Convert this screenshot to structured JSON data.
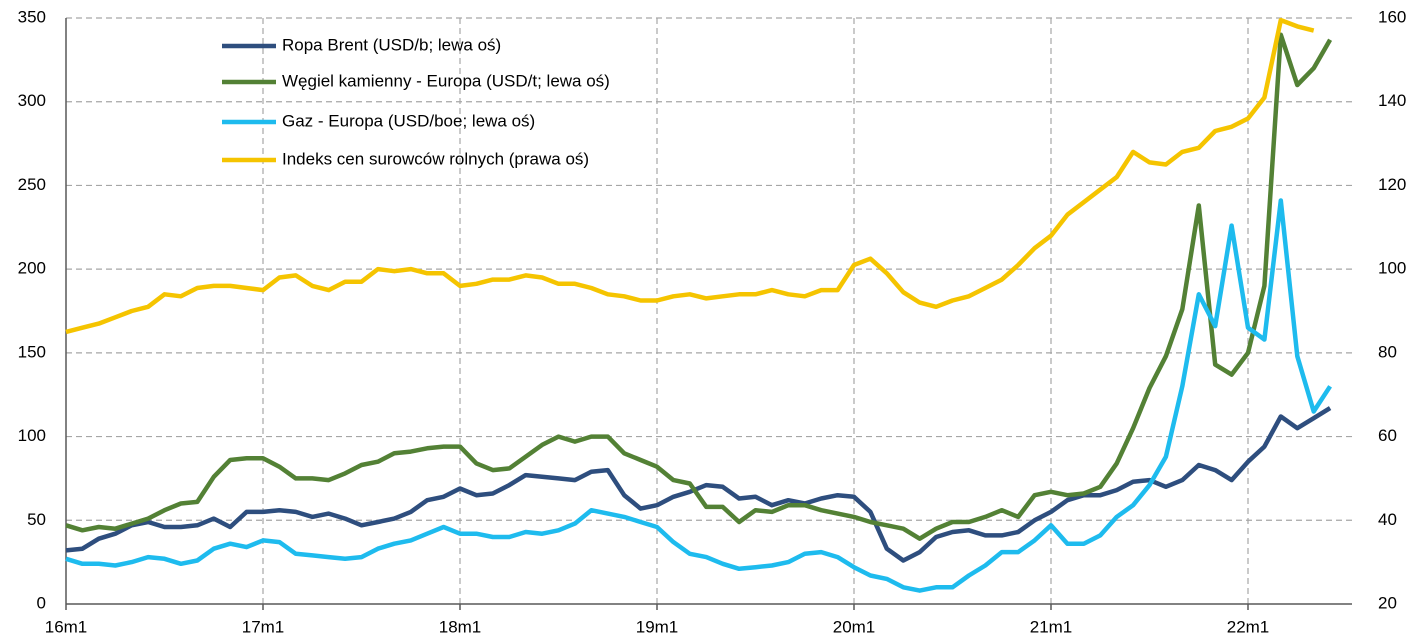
{
  "chart_data": {
    "type": "line",
    "categories": [
      "16m1",
      null,
      null,
      null,
      null,
      null,
      null,
      null,
      null,
      null,
      null,
      null,
      "17m1",
      null,
      null,
      null,
      null,
      null,
      null,
      null,
      null,
      null,
      null,
      null,
      "18m1",
      null,
      null,
      null,
      null,
      null,
      null,
      null,
      null,
      null,
      null,
      null,
      "19m1",
      null,
      null,
      null,
      null,
      null,
      null,
      null,
      null,
      null,
      null,
      null,
      "20m1",
      null,
      null,
      null,
      null,
      null,
      null,
      null,
      null,
      null,
      null,
      null,
      "21m1",
      null,
      null,
      null,
      null,
      null,
      null,
      null,
      null,
      null,
      null,
      null,
      "22m1",
      null,
      null,
      null,
      null,
      null
    ],
    "series": [
      {
        "name": "Ropa Brent (USD/b; lewa oś)",
        "color": "#2e4e7e",
        "values": [
          32,
          33,
          39,
          42,
          47,
          49,
          46,
          46,
          47,
          51,
          46,
          55,
          55,
          56,
          55,
          52,
          54,
          51,
          47,
          49,
          51,
          55,
          62,
          64,
          69,
          65,
          66,
          71,
          77,
          76,
          75,
          74,
          79,
          80,
          65,
          57,
          59,
          64,
          67,
          71,
          70,
          63,
          64,
          59,
          62,
          60,
          63,
          65,
          64,
          55,
          33,
          26,
          31,
          40,
          43,
          44,
          41,
          41,
          43,
          50,
          55,
          62,
          65,
          65,
          68,
          73,
          74,
          70,
          74,
          83,
          80,
          74,
          85,
          94,
          112,
          105,
          111,
          117
        ]
      },
      {
        "name": "Węgiel kamienny - Europa (USD/t; lewa oś)",
        "color": "#538135",
        "values": [
          47,
          44,
          46,
          45,
          48,
          51,
          56,
          60,
          61,
          76,
          86,
          87,
          87,
          82,
          75,
          75,
          74,
          78,
          83,
          85,
          90,
          91,
          93,
          94,
          94,
          84,
          80,
          81,
          88,
          95,
          100,
          97,
          100,
          100,
          90,
          86,
          82,
          74,
          72,
          58,
          58,
          49,
          56,
          55,
          59,
          59,
          56,
          54,
          52,
          49,
          47,
          45,
          39,
          45,
          49,
          49,
          52,
          56,
          52,
          65,
          67,
          65,
          66,
          70,
          84,
          105,
          129,
          148,
          176,
          238,
          143,
          137,
          150,
          190,
          340,
          310,
          320,
          337
        ]
      },
      {
        "name": "Gaz - Europa (USD/boe; lewa oś)",
        "color": "#1ebbee",
        "values": [
          27,
          24,
          24,
          23,
          25,
          28,
          27,
          24,
          26,
          33,
          36,
          34,
          38,
          37,
          30,
          29,
          28,
          27,
          28,
          33,
          36,
          38,
          42,
          46,
          42,
          42,
          40,
          40,
          43,
          42,
          44,
          48,
          56,
          54,
          52,
          49,
          46,
          37,
          30,
          28,
          24,
          21,
          22,
          23,
          25,
          30,
          31,
          28,
          22,
          17,
          15,
          10,
          8,
          10,
          10,
          17,
          23,
          31,
          31,
          38,
          47,
          36,
          36,
          41,
          52,
          59,
          71,
          88,
          130,
          185,
          166,
          226,
          165,
          158,
          241,
          148,
          115,
          130
        ]
      },
      {
        "name": "Indeks cen surowców rolnych (prawa oś)",
        "color": "#f5c400",
        "axis": "y2",
        "values": [
          85,
          86,
          87,
          88.5,
          90,
          91,
          94,
          93.5,
          95.5,
          96,
          96,
          95.5,
          95,
          98,
          98.5,
          96,
          95,
          97,
          97,
          100,
          99.5,
          100,
          99,
          99,
          96,
          96.5,
          97.5,
          97.5,
          98.5,
          98,
          96.5,
          96.5,
          95.5,
          94,
          93.5,
          92.5,
          92.5,
          93.5,
          94,
          93,
          93.5,
          94,
          94,
          95,
          94,
          93.5,
          95,
          95,
          101,
          102.5,
          99,
          94.5,
          92,
          91,
          92.5,
          93.5,
          95.5,
          97.5,
          101,
          105,
          108,
          113,
          116,
          119,
          122,
          128,
          125.5,
          125,
          128,
          129,
          133,
          134,
          136,
          141,
          159.5,
          158,
          157,
          null
        ]
      }
    ],
    "ylim": [
      0,
      350
    ],
    "yticks": [
      0,
      50,
      100,
      150,
      200,
      250,
      300,
      350
    ],
    "y2lim": [
      20,
      160
    ],
    "y2ticks": [
      20,
      40,
      60,
      80,
      100,
      120,
      140,
      160
    ],
    "grid": true,
    "legend": "top"
  }
}
